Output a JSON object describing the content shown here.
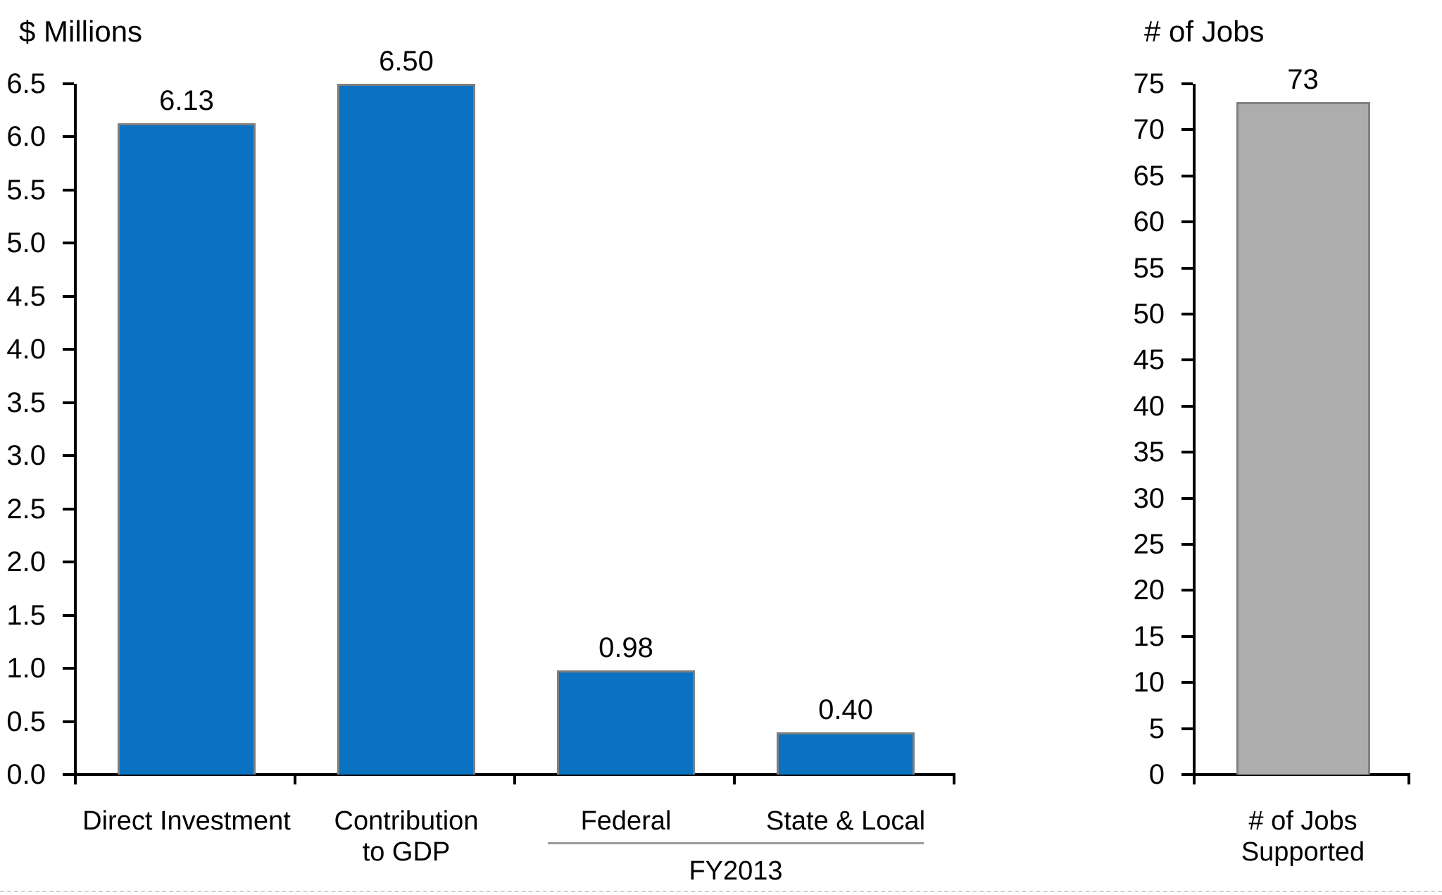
{
  "page": {
    "background": "#ffffff"
  },
  "chart_data": [
    {
      "type": "bar",
      "title": "$ Millions",
      "categories": [
        "Direct Investment",
        "Contribution\nto GDP",
        "Federal",
        "State & Local"
      ],
      "values": [
        6.13,
        6.5,
        0.98,
        0.4
      ],
      "value_labels": [
        "6.13",
        "6.50",
        "0.98",
        "0.40"
      ],
      "ylim": [
        0,
        6.5
      ],
      "ytick_step": 0.5,
      "ytick_labels": [
        "0.0",
        "0.5",
        "1.0",
        "1.5",
        "2.0",
        "2.5",
        "3.0",
        "3.5",
        "4.0",
        "4.5",
        "5.0",
        "5.5",
        "6.0",
        "6.5"
      ],
      "xlabel": "",
      "ylabel": "",
      "grid": false,
      "legend": false,
      "bar_color": "#0B71C1",
      "bar_border_color": "#7F7F7F",
      "axis_color": "#000000",
      "group_annotation": {
        "label": "FY2013",
        "covers_categories": [
          "Federal",
          "State & Local"
        ],
        "from_index": 2,
        "to_index": 3,
        "line_color": "#9B9B9B"
      }
    },
    {
      "type": "bar",
      "title": "# of Jobs",
      "categories": [
        "# of Jobs\nSupported"
      ],
      "values": [
        73
      ],
      "value_labels": [
        "73"
      ],
      "ylim": [
        0,
        75
      ],
      "ytick_step": 5,
      "ytick_labels": [
        "0",
        "5",
        "10",
        "15",
        "20",
        "25",
        "30",
        "35",
        "40",
        "45",
        "50",
        "55",
        "60",
        "65",
        "70",
        "75"
      ],
      "xlabel": "",
      "ylabel": "",
      "grid": false,
      "legend": false,
      "bar_color": "#ADADAD",
      "bar_border_color": "#808080",
      "axis_color": "#000000"
    }
  ]
}
